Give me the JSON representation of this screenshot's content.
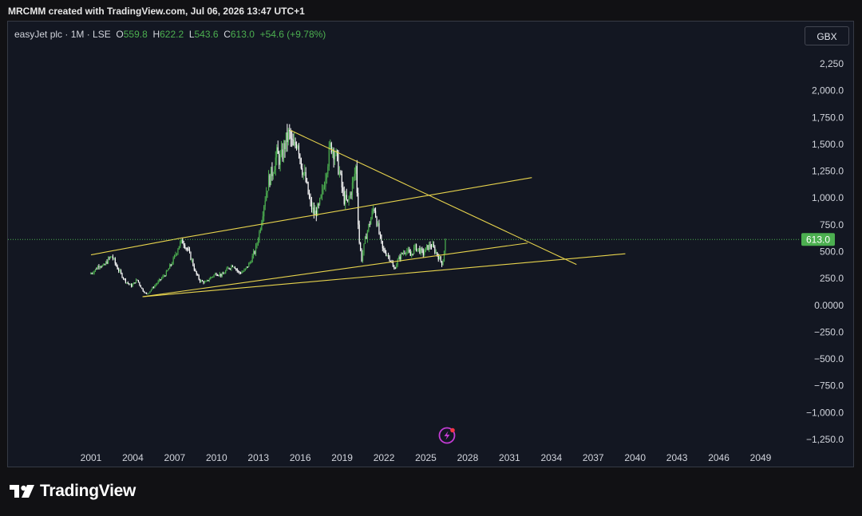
{
  "header": {
    "text": "MRCMM created with TradingView.com, Jul 06, 2026 13:47 UTC+1"
  },
  "legend": {
    "symbol": "easyJet plc · 1M · LSE",
    "o_label": "O",
    "o": "559.8",
    "h_label": "H",
    "h": "622.2",
    "l_label": "L",
    "l": "543.6",
    "c_label": "C",
    "c": "613.0",
    "change": "+54.6 (+9.78%)"
  },
  "currency_button": "GBX",
  "footer": {
    "brand": "TradingView"
  },
  "colors": {
    "up": "#4caf50",
    "down": "#ffffff",
    "trendline": "#e8d44d",
    "price_label_bg": "#4caf50"
  },
  "chart_data": {
    "type": "candlestick",
    "interval": "1M",
    "xlim": [
      2001,
      2049
    ],
    "ylim": [
      -1250,
      2250
    ],
    "x_ticks": [
      "2001",
      "2004",
      "2007",
      "2010",
      "2013",
      "2016",
      "2019",
      "2022",
      "2025",
      "2028",
      "2031",
      "2034",
      "2037",
      "2040",
      "2043",
      "2046",
      "2049"
    ],
    "y_ticks": [
      "2,250",
      "2,000.0",
      "1,750.0",
      "1,500.0",
      "1,250.0",
      "1,000.0",
      "750.0",
      "500.0",
      "250.0",
      "0.0000",
      "−250.0",
      "−500.0",
      "−750.0",
      "−1,000.0",
      "−1,250.0"
    ],
    "last_price": "613.0",
    "close_path": [
      [
        2000.9,
        290
      ],
      [
        2001.3,
        330
      ],
      [
        2001.6,
        380
      ],
      [
        2001.9,
        360
      ],
      [
        2002.2,
        420
      ],
      [
        2002.5,
        460
      ],
      [
        2002.8,
        370
      ],
      [
        2003.1,
        300
      ],
      [
        2003.5,
        220
      ],
      [
        2003.9,
        180
      ],
      [
        2004.3,
        240
      ],
      [
        2004.7,
        140
      ],
      [
        2005.0,
        100
      ],
      [
        2005.4,
        160
      ],
      [
        2005.9,
        230
      ],
      [
        2006.4,
        300
      ],
      [
        2006.9,
        420
      ],
      [
        2007.3,
        560
      ],
      [
        2007.6,
        600
      ],
      [
        2007.9,
        520
      ],
      [
        2008.2,
        430
      ],
      [
        2008.5,
        300
      ],
      [
        2008.8,
        230
      ],
      [
        2009.2,
        210
      ],
      [
        2009.6,
        260
      ],
      [
        2010.0,
        300
      ],
      [
        2010.4,
        280
      ],
      [
        2010.8,
        340
      ],
      [
        2011.2,
        380
      ],
      [
        2011.6,
        300
      ],
      [
        2012.0,
        320
      ],
      [
        2012.4,
        400
      ],
      [
        2012.8,
        520
      ],
      [
        2013.1,
        700
      ],
      [
        2013.4,
        950
      ],
      [
        2013.7,
        1150
      ],
      [
        2014.0,
        1250
      ],
      [
        2014.3,
        1400
      ],
      [
        2014.6,
        1350
      ],
      [
        2014.9,
        1500
      ],
      [
        2015.2,
        1600
      ],
      [
        2015.5,
        1450
      ],
      [
        2015.8,
        1550
      ],
      [
        2016.1,
        1300
      ],
      [
        2016.4,
        1150
      ],
      [
        2016.7,
        950
      ],
      [
        2017.0,
        850
      ],
      [
        2017.3,
        900
      ],
      [
        2017.6,
        1050
      ],
      [
        2017.9,
        1300
      ],
      [
        2018.2,
        1500
      ],
      [
        2018.5,
        1420
      ],
      [
        2018.8,
        1250
      ],
      [
        2019.1,
        1000
      ],
      [
        2019.4,
        950
      ],
      [
        2019.8,
        1150
      ],
      [
        2020.0,
        1300
      ],
      [
        2020.2,
        620
      ],
      [
        2020.4,
        430
      ],
      [
        2020.7,
        640
      ],
      [
        2021.0,
        780
      ],
      [
        2021.3,
        920
      ],
      [
        2021.6,
        700
      ],
      [
        2021.9,
        520
      ],
      [
        2022.2,
        480
      ],
      [
        2022.5,
        420
      ],
      [
        2022.7,
        330
      ],
      [
        2023.0,
        420
      ],
      [
        2023.3,
        480
      ],
      [
        2023.6,
        520
      ],
      [
        2023.9,
        460
      ],
      [
        2024.2,
        540
      ],
      [
        2024.5,
        520
      ],
      [
        2024.8,
        480
      ],
      [
        2025.1,
        540
      ],
      [
        2025.4,
        560
      ],
      [
        2025.7,
        500
      ],
      [
        2026.0,
        430
      ],
      [
        2026.2,
        380
      ],
      [
        2026.4,
        613
      ]
    ],
    "trendlines": [
      {
        "from": [
          2001.0,
          470
        ],
        "to": [
          2007.4,
          625
        ]
      },
      {
        "from": [
          2007.4,
          625
        ],
        "to": [
          2032.6,
          1190
        ]
      },
      {
        "from": [
          2015.3,
          1630
        ],
        "to": [
          2035.8,
          380
        ]
      },
      {
        "from": [
          2004.7,
          80
        ],
        "to": [
          2032.3,
          580
        ]
      },
      {
        "from": [
          2004.7,
          80
        ],
        "to": [
          2039.3,
          480
        ]
      }
    ]
  }
}
